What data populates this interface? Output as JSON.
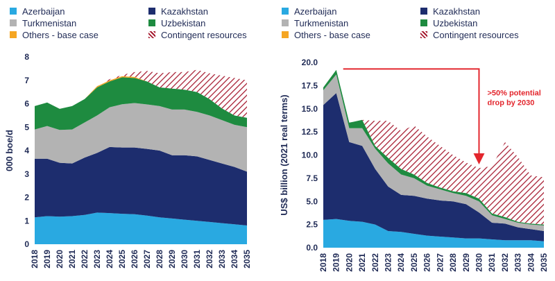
{
  "chart_data": [
    {
      "type": "area",
      "stacked": true,
      "ylabel": "000 boe/d",
      "ylim": [
        0,
        8
      ],
      "yticks": [
        0,
        1,
        2,
        3,
        4,
        5,
        6,
        7,
        8
      ],
      "x": [
        "2018",
        "2019",
        "2020",
        "2021",
        "2022",
        "2023",
        "2024",
        "2025",
        "2026",
        "2027",
        "2028",
        "2029",
        "2030",
        "2031",
        "2032",
        "2033",
        "2034",
        "2035"
      ],
      "series": [
        {
          "name": "Azerbaijan",
          "color": "#29a9e1",
          "values": [
            1.15,
            1.2,
            1.18,
            1.2,
            1.25,
            1.35,
            1.33,
            1.3,
            1.28,
            1.22,
            1.15,
            1.1,
            1.05,
            1.0,
            0.95,
            0.9,
            0.85,
            0.8
          ]
        },
        {
          "name": "Kazakhstan",
          "color": "#1d2d6e",
          "values": [
            2.5,
            2.45,
            2.3,
            2.25,
            2.45,
            2.55,
            2.82,
            2.83,
            2.85,
            2.85,
            2.85,
            2.7,
            2.75,
            2.75,
            2.65,
            2.55,
            2.45,
            2.3
          ]
        },
        {
          "name": "Turkmenistan",
          "color": "#b3b3b3",
          "values": [
            1.25,
            1.4,
            1.4,
            1.45,
            1.5,
            1.6,
            1.7,
            1.85,
            1.9,
            1.9,
            1.9,
            1.95,
            1.95,
            1.9,
            1.9,
            1.85,
            1.8,
            1.9
          ]
        },
        {
          "name": "Uzbekistan",
          "color": "#1e8b40",
          "values": [
            1.0,
            1.0,
            0.9,
            1.0,
            1.0,
            1.2,
            1.1,
            1.15,
            1.07,
            0.98,
            0.8,
            0.9,
            0.85,
            0.85,
            0.7,
            0.5,
            0.4,
            0.4
          ]
        },
        {
          "name": "Others - base case",
          "color": "#f5a623",
          "values": [
            0,
            0,
            0,
            0,
            0,
            0.05,
            0.05,
            0.05,
            0.05,
            0,
            0,
            0,
            0,
            0,
            0,
            0,
            0,
            0
          ]
        },
        {
          "name": "Contingent resources",
          "color": "#a5192e",
          "pattern": "hatch",
          "values": [
            0,
            0,
            0,
            0,
            0,
            0,
            0.05,
            0.05,
            0.2,
            0.45,
            0.6,
            0.7,
            0.75,
            0.95,
            1.1,
            1.4,
            1.6,
            1.6
          ]
        }
      ],
      "legend": "top"
    },
    {
      "type": "area",
      "stacked": true,
      "ylabel": "US$ billion (2021 real terms)",
      "ylim": [
        0,
        20
      ],
      "yticks": [
        "0.0",
        "2.5",
        "5.0",
        "7.5",
        "10.0",
        "12.5",
        "15.0",
        "17.5",
        "20.0"
      ],
      "x": [
        "2018",
        "2019",
        "2020",
        "2021",
        "2022",
        "2023",
        "2024",
        "2025",
        "2026",
        "2027",
        "2028",
        "2029",
        "2030",
        "2031",
        "2032",
        "2033",
        "2034",
        "2035"
      ],
      "series": [
        {
          "name": "Azerbaijan",
          "color": "#29a9e1",
          "values": [
            3.0,
            3.1,
            2.9,
            2.8,
            2.5,
            1.8,
            1.7,
            1.5,
            1.3,
            1.2,
            1.1,
            1.0,
            1.0,
            0.9,
            0.8,
            0.8,
            0.8,
            0.7
          ]
        },
        {
          "name": "Kazakhstan",
          "color": "#1d2d6e",
          "values": [
            12.4,
            13.6,
            8.5,
            8.2,
            6.0,
            4.8,
            4.0,
            4.1,
            4.0,
            3.9,
            3.9,
            3.7,
            2.8,
            1.8,
            1.8,
            1.4,
            1.2,
            1.1
          ]
        },
        {
          "name": "Turkmenistan",
          "color": "#b3b3b3",
          "values": [
            1.6,
            2.0,
            1.5,
            1.9,
            2.2,
            2.5,
            2.2,
            1.9,
            1.4,
            1.2,
            0.9,
            0.9,
            1.2,
            0.8,
            0.5,
            0.5,
            0.5,
            0.6
          ]
        },
        {
          "name": "Uzbekistan",
          "color": "#1e8b40",
          "values": [
            0.3,
            0.5,
            0.6,
            0.9,
            0.3,
            0.6,
            0.6,
            0.4,
            0.3,
            0.2,
            0.2,
            0.3,
            0.3,
            0.2,
            0.2,
            0.1,
            0.1,
            0.1
          ]
        },
        {
          "name": "Others - base case",
          "color": "#f5a623",
          "values": [
            0,
            0,
            0,
            0,
            0,
            0,
            0,
            0,
            0,
            0,
            0,
            0,
            0,
            0,
            0,
            0,
            0,
            0
          ]
        },
        {
          "name": "Contingent resources",
          "color": "#a5192e",
          "pattern": "hatch",
          "values": [
            0,
            0,
            0,
            0,
            2.7,
            4.0,
            4.1,
            5.3,
            5.0,
            4.5,
            3.9,
            3.3,
            3.3,
            5.1,
            8.1,
            7.0,
            5.2,
            5.1
          ]
        }
      ],
      "annotation": {
        "text_line1": ">50% potential",
        "text_line2": "drop by 2030",
        "color": "#e3262d",
        "arrow_from": "2019",
        "arrow_to": "2030",
        "y_level": 19.3
      },
      "legend": "top"
    }
  ]
}
